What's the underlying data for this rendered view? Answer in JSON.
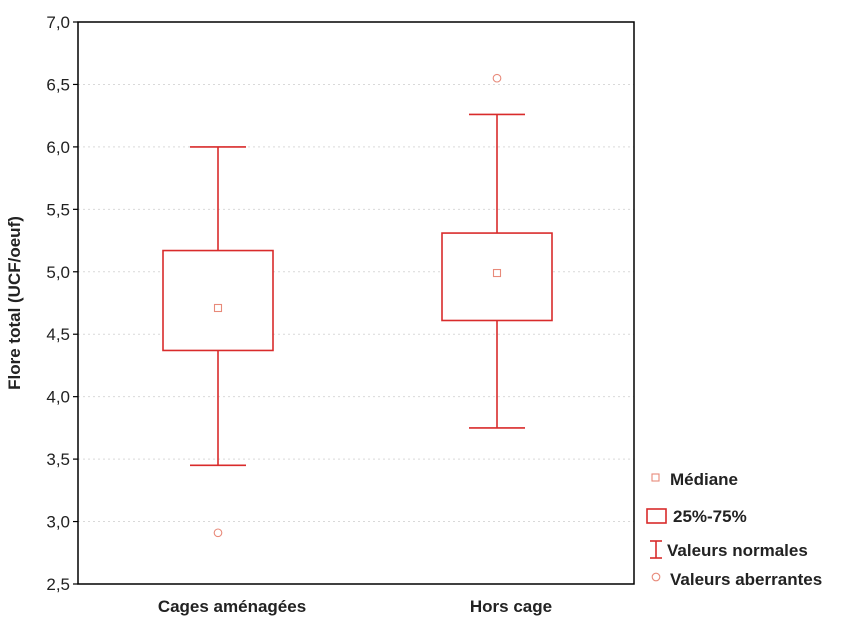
{
  "chart_data": {
    "type": "boxplot",
    "title": "",
    "xlabel": "",
    "ylabel": "Flore total (UCF/oeuf)",
    "ylim": [
      2.5,
      7.0
    ],
    "yticks": [
      "2,5",
      "3,0",
      "3,5",
      "4,0",
      "4,5",
      "5,0",
      "5,5",
      "6,0",
      "6,5",
      "7,0"
    ],
    "grid": true,
    "categories": [
      "Cages aménagées",
      "Hors cage"
    ],
    "series": [
      {
        "category": "Cages aménagées",
        "median": 4.71,
        "q1": 4.37,
        "q3": 5.17,
        "whisker_low": 3.45,
        "whisker_high": 6.0,
        "outliers": [
          2.91
        ]
      },
      {
        "category": "Hors cage",
        "median": 4.99,
        "q1": 4.61,
        "q3": 5.31,
        "whisker_low": 3.75,
        "whisker_high": 6.26,
        "outliers": [
          6.55
        ]
      }
    ],
    "legend": {
      "placement": "bottom-right",
      "items": [
        {
          "symbol": "median",
          "label": "Médiane"
        },
        {
          "symbol": "box",
          "label": "25%-75%"
        },
        {
          "symbol": "whisker",
          "label": "Valeurs normales"
        },
        {
          "symbol": "outlier",
          "label": "Valeurs aberrantes"
        }
      ]
    },
    "colors": {
      "box": "#d92b2b",
      "median": "#e88a7a",
      "outlier": "#e88a7a",
      "axis": "#000000",
      "grid": "#d9d9d9"
    }
  }
}
